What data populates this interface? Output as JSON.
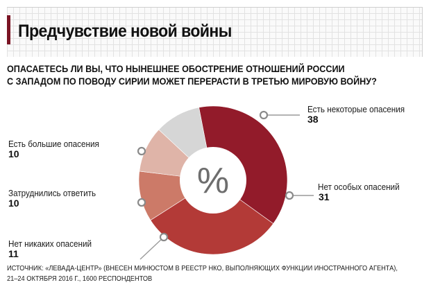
{
  "title": "Предчувствие новой войны",
  "question": {
    "line1": "ОПАСАЕТЕСЬ ЛИ ВЫ, ЧТО НЫНЕШНЕЕ ОБОСТРЕНИЕ ОТНОШЕНИЙ РОССИИ",
    "line2": "С ЗАПАДОМ ПО ПОВОДУ СИРИИ МОЖЕТ ПЕРЕРАСТИ В ТРЕТЬЮ МИРОВУЮ ВОЙНУ?"
  },
  "center_symbol": "%",
  "source": {
    "line1": "ИСТОЧНИК: «ЛЕВАДА-ЦЕНТР» (ВНЕСЕН МИНЮСТОМ В РЕЕСТР НКО, ВЫПОЛНЯЮЩИХ ФУНКЦИИ ИНОСТРАННОГО АГЕНТА),",
    "line2": "21–24 ОКТЯБРЯ 2016 Г., 1600 РЕСПОНДЕНТОВ"
  },
  "chart_data": {
    "type": "pie",
    "donut": true,
    "categories": [
      "Есть некоторые опасения",
      "Нет особых опасений",
      "Нет никаких опасений",
      "Затруднились ответить",
      "Есть большие опасения"
    ],
    "values": [
      38,
      31,
      11,
      10,
      10
    ],
    "colors": [
      "#921b2a",
      "#b33a37",
      "#cc7a68",
      "#dfb4a8",
      "#d6d6d6"
    ],
    "start_angle_deg": 349,
    "label_colors": {
      "text": "#1a1a1a",
      "value": "#111111",
      "leader": "#9a9a9a"
    }
  }
}
